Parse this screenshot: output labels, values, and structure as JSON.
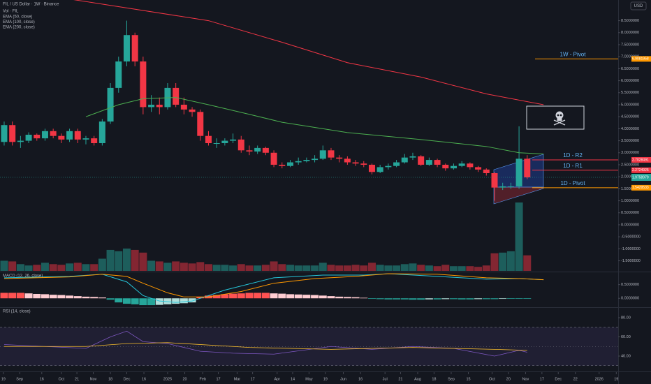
{
  "chart_data": [
    {
      "type": "candlestick",
      "title": "FIL / US Dollar · 1W · Binance",
      "currency": "USD",
      "xlim": [
        -0.51,
        75.13
      ],
      "ylim": [
        -1.92,
        9.36
      ],
      "yticks": [
        {
          "value": -1.5,
          "label": "-1.5000000"
        },
        {
          "value": -1,
          "label": "-1.0000000"
        },
        {
          "value": -0.5,
          "label": "-0.5000000"
        },
        {
          "value": 0,
          "label": "0.0000000"
        },
        {
          "value": 0.5,
          "label": "0.5000000"
        },
        {
          "value": 1,
          "label": "1.0000000"
        },
        {
          "value": 1.5,
          "label": "1.5000000"
        },
        {
          "value": 2,
          "label": "2.0000000"
        },
        {
          "value": 2.5,
          "label": "2.5000000"
        },
        {
          "value": 3,
          "label": "3.0000000"
        },
        {
          "value": 3.5,
          "label": "3.5000000"
        },
        {
          "value": 4,
          "label": "4.0000000"
        },
        {
          "value": 4.5,
          "label": "4.5000000"
        },
        {
          "value": 5,
          "label": "5.0000000"
        },
        {
          "value": 5.5,
          "label": "5.5000000"
        },
        {
          "value": 6,
          "label": "6.0000000"
        },
        {
          "value": 6.5,
          "label": "6.5000000"
        },
        {
          "value": 7,
          "label": "7.0000000"
        },
        {
          "value": 7.5,
          "label": "7.5000000"
        },
        {
          "value": 8,
          "label": "8.0000000"
        },
        {
          "value": 8.5,
          "label": "8.5000000"
        }
      ],
      "up_color": "#26a69a",
      "down_color": "#f23645",
      "open": [
        3.45,
        4.15,
        3.45,
        3.5,
        3.75,
        3.6,
        3.9,
        3.7,
        3.55,
        3.9,
        3.55,
        3.6,
        3.4,
        4.3,
        5.7,
        6.8,
        7.9,
        6.8,
        4.9,
        5.0,
        4.9,
        5.7,
        5.0,
        4.8,
        4.7,
        3.7,
        3.4,
        3.4,
        3.5,
        3.55,
        3.1,
        3.05,
        3.2,
        3.0,
        2.5,
        2.45,
        2.6,
        2.65,
        2.7,
        2.75,
        3.1,
        2.8,
        2.75,
        2.6,
        2.55,
        2.5,
        2.2,
        2.4,
        2.45,
        2.6,
        2.8,
        2.85,
        2.5,
        2.7,
        2.5,
        2.35,
        2.45,
        2.55,
        2.4,
        2.3,
        2.15,
        1.55,
        1.6,
        1.6,
        2.75
      ],
      "high": [
        4.3,
        4.3,
        3.7,
        3.85,
        3.8,
        4.0,
        4.0,
        3.8,
        4.0,
        4.0,
        3.7,
        3.7,
        4.4,
        5.9,
        7.0,
        8.5,
        8.0,
        7.0,
        5.4,
        5.3,
        5.9,
        5.9,
        5.3,
        4.9,
        4.8,
        3.9,
        3.6,
        3.6,
        3.8,
        3.7,
        3.3,
        3.3,
        3.25,
        3.1,
        2.6,
        2.7,
        2.8,
        2.8,
        2.9,
        3.3,
        3.2,
        2.9,
        2.85,
        2.7,
        2.65,
        2.55,
        2.5,
        2.55,
        2.7,
        2.95,
        3.0,
        2.9,
        2.8,
        2.75,
        2.55,
        2.55,
        2.65,
        2.6,
        2.45,
        2.35,
        2.2,
        1.75,
        1.75,
        4.1,
        2.9
      ],
      "low": [
        3.3,
        3.3,
        3.2,
        3.4,
        3.5,
        3.5,
        3.6,
        3.4,
        3.45,
        3.4,
        3.35,
        3.3,
        3.3,
        4.2,
        5.5,
        6.6,
        6.6,
        4.6,
        4.7,
        4.6,
        4.8,
        4.9,
        4.6,
        4.5,
        3.5,
        3.3,
        3.2,
        3.3,
        3.4,
        3.0,
        2.9,
        2.95,
        2.9,
        2.4,
        2.35,
        2.4,
        2.5,
        2.6,
        2.6,
        2.7,
        2.7,
        2.6,
        2.5,
        2.45,
        2.4,
        2.1,
        2.15,
        2.3,
        2.4,
        2.55,
        2.7,
        2.45,
        2.45,
        2.4,
        2.25,
        2.3,
        2.4,
        2.3,
        2.2,
        2.05,
        1.0,
        1.45,
        1.5,
        1.5,
        1.9
      ],
      "close": [
        4.15,
        3.45,
        3.5,
        3.75,
        3.6,
        3.9,
        3.7,
        3.55,
        3.9,
        3.55,
        3.6,
        3.4,
        4.3,
        5.7,
        6.8,
        7.9,
        6.8,
        4.9,
        5.0,
        4.9,
        5.7,
        5.0,
        4.8,
        4.7,
        3.7,
        3.4,
        3.4,
        3.5,
        3.55,
        3.1,
        3.05,
        3.2,
        3.0,
        2.5,
        2.45,
        2.6,
        2.65,
        2.7,
        2.75,
        3.1,
        2.8,
        2.75,
        2.6,
        2.55,
        2.5,
        2.2,
        2.4,
        2.45,
        2.6,
        2.8,
        2.85,
        2.5,
        2.7,
        2.5,
        2.35,
        2.45,
        2.55,
        2.4,
        2.3,
        2.15,
        1.55,
        1.6,
        1.6,
        2.75,
        1.9758979
      ],
      "volume": {
        "name": "Vol · FIL",
        "ylim": [
          0,
          400
        ],
        "values": [
          15,
          14,
          10,
          8,
          9,
          12,
          10,
          9,
          11,
          12,
          10,
          10,
          18,
          31,
          29,
          33,
          31,
          27,
          15,
          14,
          12,
          14,
          12,
          11,
          13,
          10,
          9,
          9,
          8,
          10,
          8,
          8,
          9,
          14,
          10,
          9,
          8,
          8,
          8,
          12,
          9,
          8,
          8,
          9,
          8,
          12,
          9,
          8,
          8,
          10,
          11,
          9,
          8,
          7,
          9,
          7,
          7,
          7,
          6,
          8,
          26,
          27,
          29,
          101,
          23
        ]
      },
      "series": [
        {
          "name": "EMA (50, close)",
          "color": "#4caf50",
          "x": [
            10,
            14,
            17,
            21,
            25,
            30,
            34,
            42,
            51,
            59,
            63,
            66
          ],
          "values": [
            4.5,
            5.0,
            5.25,
            5.3,
            5.0,
            4.6,
            4.27,
            3.84,
            3.55,
            3.26,
            3.0,
            2.95
          ]
        },
        {
          "name": "EMA (100, close)",
          "color": "#2962ff"
        },
        {
          "name": "EMA (200, close)",
          "color": "#f23645",
          "x": [
            8,
            25,
            34,
            42,
            51,
            59,
            66
          ],
          "values": [
            9.4,
            8.5,
            7.6,
            6.75,
            6.15,
            5.45,
            5.0
          ]
        }
      ],
      "levels": [
        {
          "name": "1W - Pivot",
          "value": 6.9081958,
          "color": "#ff9800"
        },
        {
          "name": "1D - R2",
          "value": 2.7028491,
          "color": "#f23645"
        },
        {
          "name": "1D - R1",
          "value": 2.2724926,
          "color": "#f23645"
        },
        {
          "name": "1D - Pivot",
          "value": 1.5429533,
          "color": "#ff9800"
        }
      ]
    },
    {
      "type": "macd",
      "title": "MACD (12, 26, close)",
      "xlim": [
        -0.51,
        75.13
      ],
      "ylim": [
        -0.325,
        0.925
      ],
      "yticks": [
        {
          "value": 0,
          "label": "0.0000000"
        },
        {
          "value": 0.5,
          "label": "0.5000000"
        }
      ],
      "histogram": [
        0.2,
        0.2,
        0.2,
        0.18,
        0.16,
        0.15,
        0.13,
        0.12,
        0.1,
        0.08,
        0.06,
        0.05,
        0.03,
        -0.05,
        -0.15,
        -0.2,
        -0.22,
        -0.25,
        -0.25,
        -0.24,
        -0.22,
        -0.2,
        -0.18,
        -0.15,
        0.05,
        0.1,
        0.12,
        0.15,
        0.17,
        0.18,
        0.2,
        0.2,
        0.2,
        0.18,
        0.17,
        0.15,
        0.14,
        0.13,
        0.12,
        0.1,
        0.08,
        0.06,
        0.05,
        0.04,
        0.02,
        -0.02,
        -0.03,
        -0.04,
        -0.04,
        -0.04,
        -0.05,
        -0.05,
        -0.04,
        -0.04,
        -0.03,
        -0.03,
        -0.04,
        -0.04,
        -0.03,
        -0.03,
        -0.03,
        -0.02,
        -0.02,
        -0.02,
        -0.02
      ],
      "series": [
        {
          "color": "#26c6da",
          "x": [
            0,
            8,
            12,
            15,
            17,
            19,
            21,
            23,
            27,
            33,
            39,
            44,
            47,
            53,
            59,
            63,
            66
          ],
          "values": [
            0.75,
            0.8,
            0.88,
            0.6,
            0.1,
            -0.1,
            -0.15,
            -0.1,
            0.3,
            0.75,
            0.85,
            0.85,
            0.9,
            0.8,
            0.7,
            0.72,
            0.68
          ]
        },
        {
          "color": "#ff9800",
          "x": [
            0,
            8,
            12,
            15,
            17,
            20,
            22,
            25,
            29,
            33,
            38,
            43,
            47,
            53,
            59,
            63,
            66
          ],
          "values": [
            0.72,
            0.78,
            0.88,
            0.8,
            0.55,
            0.2,
            0.05,
            0.05,
            0.25,
            0.55,
            0.72,
            0.8,
            0.9,
            0.88,
            0.75,
            0.72,
            0.68
          ]
        }
      ]
    },
    {
      "type": "rsi",
      "title": "RSI (14, close)",
      "xlim": [
        -0.51,
        75.13
      ],
      "ylim": [
        24,
        90.2
      ],
      "yticks": [
        {
          "value": 40,
          "label": "40.00"
        },
        {
          "value": 60,
          "label": "60.00"
        },
        {
          "value": 80,
          "label": "80.00"
        }
      ],
      "band": [
        30,
        70
      ],
      "midline": 50,
      "series": [
        {
          "color": "#7e57c2",
          "x": [
            0,
            5,
            10,
            13,
            15,
            17,
            20,
            24,
            28,
            33,
            40,
            45,
            50,
            55,
            60,
            63,
            64
          ],
          "values": [
            52,
            50,
            48,
            60,
            66,
            55,
            53,
            45,
            43,
            42,
            50,
            47,
            50,
            48,
            40,
            46,
            44
          ]
        },
        {
          "color": "#fbc02d",
          "x": [
            0,
            10,
            15,
            20,
            30,
            40,
            50,
            60,
            64
          ],
          "values": [
            50,
            50,
            53,
            54,
            49,
            47,
            49,
            47,
            46
          ]
        }
      ],
      "xticks": [
        {
          "value": -0.1,
          "label": "19"
        },
        {
          "value": 1.9,
          "label": "Sep"
        },
        {
          "value": 4.6,
          "label": "16"
        },
        {
          "value": 7.0,
          "label": "Oct"
        },
        {
          "value": 8.9,
          "label": "21"
        },
        {
          "value": 10.9,
          "label": "Nov"
        },
        {
          "value": 13.0,
          "label": "18"
        },
        {
          "value": 15.0,
          "label": "Dec"
        },
        {
          "value": 17.1,
          "label": "16"
        },
        {
          "value": 20.0,
          "label": "2025"
        },
        {
          "value": 22.1,
          "label": "20"
        },
        {
          "value": 24.3,
          "label": "Feb"
        },
        {
          "value": 26.2,
          "label": "17"
        },
        {
          "value": 28.5,
          "label": "Mar"
        },
        {
          "value": 30.4,
          "label": "17"
        },
        {
          "value": 33.4,
          "label": "Apr"
        },
        {
          "value": 35.3,
          "label": "14"
        },
        {
          "value": 37.3,
          "label": "May"
        },
        {
          "value": 39.3,
          "label": "19"
        },
        {
          "value": 41.5,
          "label": "Jun"
        },
        {
          "value": 43.6,
          "label": "16"
        },
        {
          "value": 46.6,
          "label": "Jul"
        },
        {
          "value": 48.5,
          "label": "21"
        },
        {
          "value": 50.6,
          "label": "Aug"
        },
        {
          "value": 52.6,
          "label": "18"
        },
        {
          "value": 54.7,
          "label": "Sep"
        },
        {
          "value": 56.8,
          "label": "15"
        },
        {
          "value": 59.7,
          "label": "Oct"
        },
        {
          "value": 61.7,
          "label": "20"
        },
        {
          "value": 63.8,
          "label": "Nov"
        },
        {
          "value": 65.8,
          "label": "17"
        },
        {
          "value": 67.8,
          "label": "Dec"
        },
        {
          "value": 69.9,
          "label": "22"
        },
        {
          "value": 72.8,
          "label": "2026"
        },
        {
          "value": 74.9,
          "label": "19"
        }
      ]
    }
  ]
}
